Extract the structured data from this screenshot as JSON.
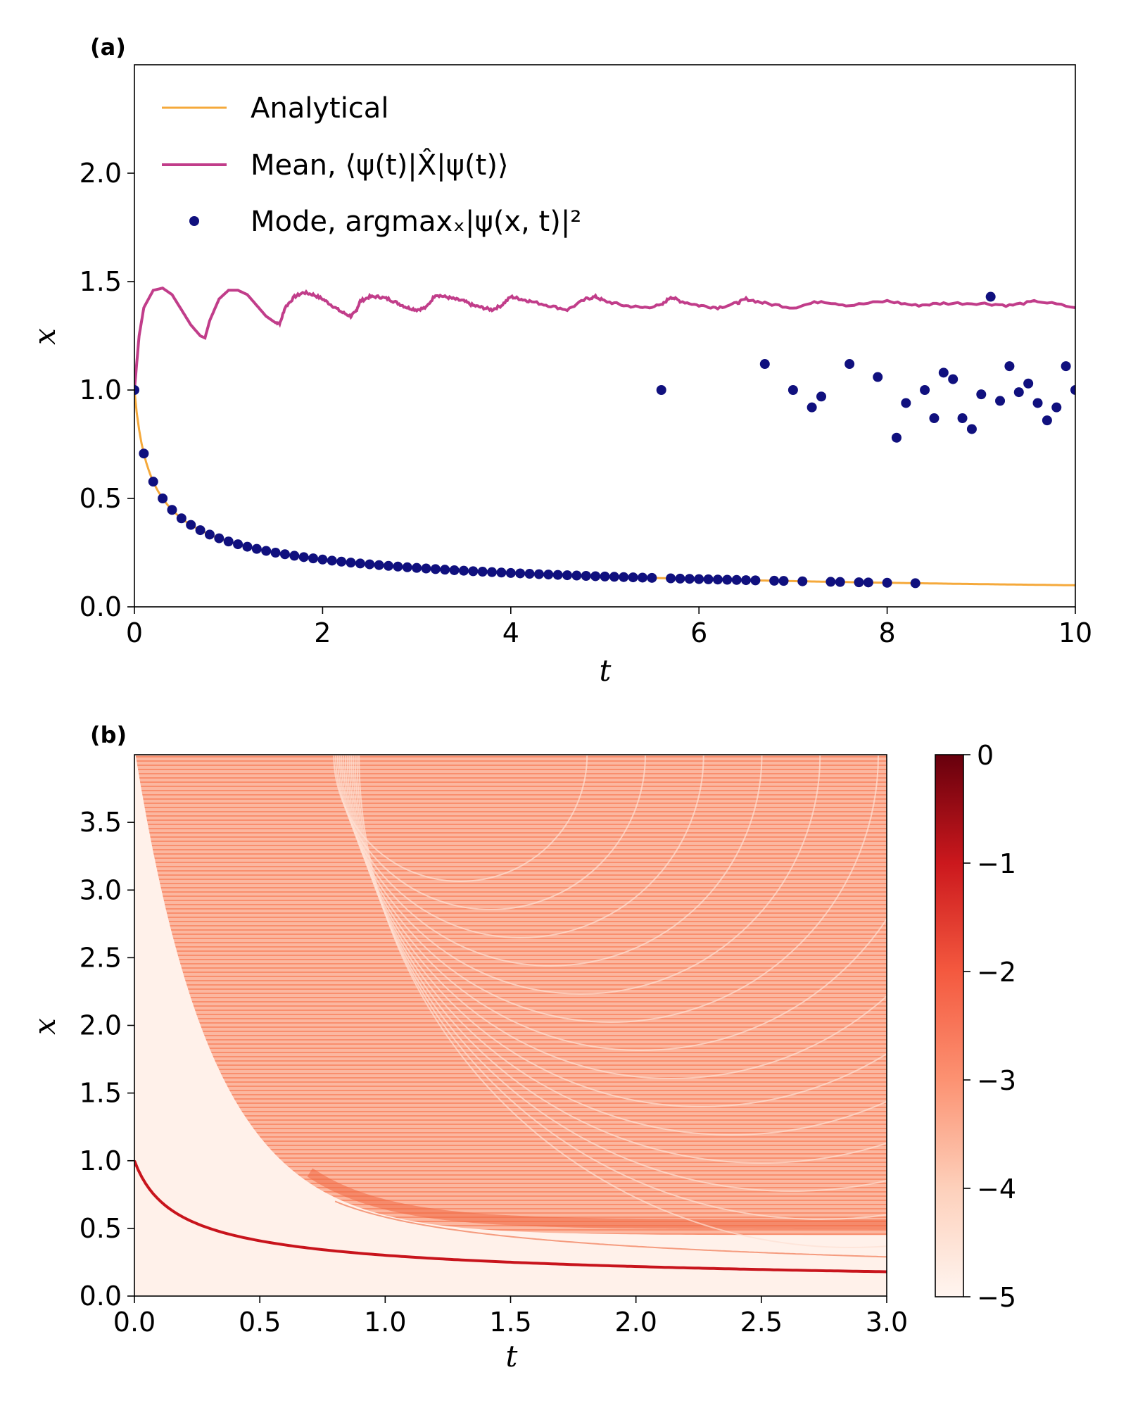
{
  "chart_data": [
    {
      "type": "line",
      "panel_label": "(a)",
      "xlabel": "t",
      "ylabel": "x",
      "xlim": [
        0,
        10
      ],
      "ylim": [
        0,
        2.5
      ],
      "xticks": [
        0,
        2,
        4,
        6,
        8,
        10
      ],
      "yticks": [
        0.0,
        0.5,
        1.0,
        1.5,
        2.0
      ],
      "xtick_labels": [
        "0",
        "2",
        "4",
        "6",
        "8",
        "10"
      ],
      "ytick_labels": [
        "0.0",
        "0.5",
        "1.0",
        "1.5",
        "2.0"
      ],
      "grid": false,
      "legend_position": "top-left",
      "series": [
        {
          "name": "Analytical",
          "kind": "line",
          "color": "#f5a93b",
          "formula": "x = 1/sqrt(1 + 10 t)",
          "t_range": [
            0,
            10
          ]
        },
        {
          "name": "Mean, ⟨ψ(t)|X̂|ψ(t)⟩",
          "kind": "line",
          "color": "#c13d8a",
          "points": [
            [
              0,
              1.0
            ],
            [
              0.05,
              1.25
            ],
            [
              0.1,
              1.38
            ],
            [
              0.2,
              1.46
            ],
            [
              0.3,
              1.47
            ],
            [
              0.4,
              1.44
            ],
            [
              0.5,
              1.37
            ],
            [
              0.6,
              1.3
            ],
            [
              0.7,
              1.25
            ],
            [
              0.75,
              1.24
            ],
            [
              0.8,
              1.32
            ],
            [
              0.9,
              1.42
            ],
            [
              1.0,
              1.46
            ],
            [
              1.1,
              1.46
            ],
            [
              1.2,
              1.44
            ],
            [
              1.3,
              1.39
            ],
            [
              1.4,
              1.34
            ],
            [
              1.5,
              1.31
            ],
            [
              1.55,
              1.31
            ],
            [
              1.6,
              1.38
            ],
            [
              1.7,
              1.43
            ],
            [
              1.8,
              1.45
            ],
            [
              1.9,
              1.44
            ],
            [
              2.0,
              1.42
            ],
            [
              2.1,
              1.39
            ],
            [
              2.2,
              1.36
            ],
            [
              2.3,
              1.34
            ],
            [
              2.35,
              1.36
            ],
            [
              2.4,
              1.41
            ],
            [
              2.5,
              1.43
            ],
            [
              2.6,
              1.43
            ],
            [
              2.7,
              1.42
            ],
            [
              2.8,
              1.4
            ],
            [
              2.9,
              1.38
            ],
            [
              3.0,
              1.37
            ],
            [
              3.1,
              1.38
            ],
            [
              3.2,
              1.44
            ],
            [
              3.3,
              1.43
            ],
            [
              3.4,
              1.42
            ],
            [
              3.5,
              1.41
            ],
            [
              3.6,
              1.39
            ],
            [
              3.7,
              1.38
            ],
            [
              3.8,
              1.37
            ],
            [
              3.9,
              1.39
            ],
            [
              4.0,
              1.43
            ],
            [
              4.1,
              1.42
            ],
            [
              4.2,
              1.41
            ],
            [
              4.4,
              1.39
            ],
            [
              4.6,
              1.37
            ],
            [
              4.8,
              1.42
            ],
            [
              4.9,
              1.43
            ],
            [
              5.0,
              1.41
            ],
            [
              5.2,
              1.39
            ],
            [
              5.4,
              1.38
            ],
            [
              5.6,
              1.39
            ],
            [
              5.7,
              1.43
            ],
            [
              5.8,
              1.41
            ],
            [
              6.0,
              1.39
            ],
            [
              6.2,
              1.38
            ],
            [
              6.4,
              1.4
            ],
            [
              6.5,
              1.42
            ],
            [
              6.7,
              1.4
            ],
            [
              7.0,
              1.38
            ],
            [
              7.3,
              1.41
            ],
            [
              7.6,
              1.39
            ],
            [
              8.0,
              1.41
            ],
            [
              8.3,
              1.39
            ],
            [
              8.6,
              1.4
            ],
            [
              9.0,
              1.4
            ],
            [
              9.3,
              1.39
            ],
            [
              9.6,
              1.41
            ],
            [
              10.0,
              1.38
            ]
          ]
        },
        {
          "name": "Mode, argmaxₓ|ψ(x, t)|²",
          "kind": "scatter",
          "color": "#10107e",
          "tail_points": [
            [
              5.6,
              1.0
            ],
            [
              6.7,
              1.12
            ],
            [
              7.0,
              1.0
            ],
            [
              7.2,
              0.92
            ],
            [
              7.3,
              0.97
            ],
            [
              7.6,
              1.12
            ],
            [
              7.9,
              1.06
            ],
            [
              8.1,
              0.78
            ],
            [
              8.2,
              0.94
            ],
            [
              8.4,
              1.0
            ],
            [
              8.5,
              0.87
            ],
            [
              8.6,
              1.08
            ],
            [
              8.7,
              1.05
            ],
            [
              8.8,
              0.87
            ],
            [
              8.9,
              0.82
            ],
            [
              9.0,
              0.98
            ],
            [
              9.1,
              1.43
            ],
            [
              9.2,
              0.95
            ],
            [
              9.3,
              1.11
            ],
            [
              9.4,
              0.99
            ],
            [
              9.5,
              1.03
            ],
            [
              9.6,
              0.94
            ],
            [
              9.7,
              0.86
            ],
            [
              9.8,
              0.92
            ],
            [
              9.9,
              1.11
            ],
            [
              10.0,
              1.0
            ]
          ],
          "curve_points_t": [
            0,
            0.1,
            0.2,
            0.3,
            0.4,
            0.5,
            0.6,
            0.7,
            0.8,
            0.9,
            1.0,
            1.1,
            1.2,
            1.3,
            1.4,
            1.5,
            1.6,
            1.7,
            1.8,
            1.9,
            2.0,
            2.1,
            2.2,
            2.3,
            2.4,
            2.5,
            2.6,
            2.7,
            2.8,
            2.9,
            3.0,
            3.1,
            3.2,
            3.3,
            3.4,
            3.5,
            3.6,
            3.7,
            3.8,
            3.9,
            4.0,
            4.1,
            4.2,
            4.3,
            4.4,
            4.5,
            4.6,
            4.7,
            4.8,
            4.9,
            5.0,
            5.1,
            5.2,
            5.3,
            5.4,
            5.5,
            5.7,
            5.8,
            5.9,
            6.0,
            6.1,
            6.2,
            6.3,
            6.4,
            6.5,
            6.6,
            6.8,
            6.9,
            7.1,
            7.4,
            7.5,
            7.7,
            7.8,
            8.0,
            8.3
          ]
        }
      ]
    },
    {
      "type": "heatmap",
      "panel_label": "(b)",
      "xlabel": "t",
      "ylabel": "x",
      "xlim": [
        0,
        3.0
      ],
      "ylim": [
        0,
        4.0
      ],
      "xtick_labels": [
        "0.0",
        "0.5",
        "1.0",
        "1.5",
        "2.0",
        "2.5",
        "3.0"
      ],
      "ytick_labels": [
        "0.0",
        "0.5",
        "1.0",
        "1.5",
        "2.0",
        "2.5",
        "3.0",
        "3.5"
      ],
      "colorbar": {
        "range": [
          -5,
          0
        ],
        "tick_labels": [
          "0",
          "−1",
          "−2",
          "−3",
          "−4",
          "−5"
        ],
        "colormap": "Reds",
        "colors": [
          "#fff5f0",
          "#fdd0bb",
          "#fc9272",
          "#f4593f",
          "#cb181d",
          "#67000d"
        ]
      }
    }
  ]
}
